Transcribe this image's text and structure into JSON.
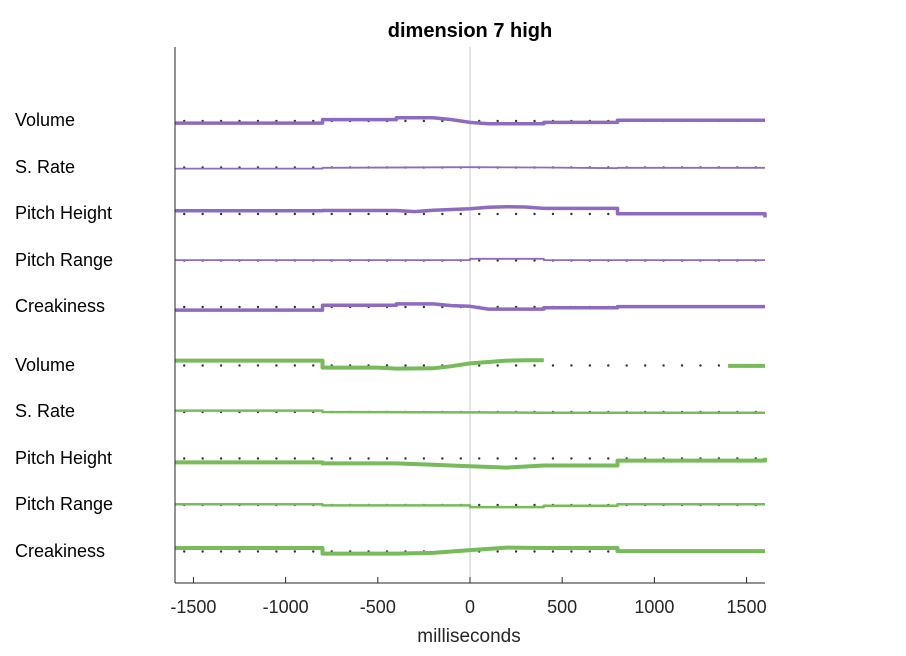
{
  "chart_data": {
    "type": "line",
    "title": "dimension  7 high",
    "xlabel": "milliseconds",
    "ylabel": "",
    "xlim": [
      -1600,
      1600
    ],
    "xticks": [
      -1500,
      -1000,
      -500,
      0,
      500,
      1000,
      1500
    ],
    "tick_labels": [
      "-1500",
      "-1000",
      "-500",
      "0",
      "500",
      "1000",
      "1500"
    ],
    "grid": false,
    "zero_line": true,
    "dotted_baselines": true,
    "colors": {
      "purple": "#8e6bbf",
      "green": "#77bb5a",
      "axis": "#262626",
      "zero_line": "#c8c8c8",
      "dots": "#333333"
    },
    "groups": [
      {
        "color": "purple",
        "series": [
          {
            "label": "Volume",
            "weight": 3.5,
            "points": [
              [
                -1600,
                -0.3
              ],
              [
                -800,
                -0.3
              ],
              [
                -800,
                0.2
              ],
              [
                -400,
                0.2
              ],
              [
                -400,
                0.45
              ],
              [
                -200,
                0.45
              ],
              [
                -100,
                0.2
              ],
              [
                0,
                -0.2
              ],
              [
                100,
                -0.4
              ],
              [
                400,
                -0.4
              ],
              [
                400,
                -0.2
              ],
              [
                800,
                -0.2
              ],
              [
                800,
                0.1
              ],
              [
                1600,
                0.1
              ]
            ]
          },
          {
            "label": "S. Rate",
            "weight": 1.8,
            "points": [
              [
                -1600,
                -0.15
              ],
              [
                -800,
                -0.15
              ],
              [
                -800,
                -0.05
              ],
              [
                0,
                0.05
              ],
              [
                400,
                0
              ],
              [
                800,
                -0.1
              ],
              [
                800,
                -0.05
              ],
              [
                1600,
                -0.05
              ]
            ]
          },
          {
            "label": "Pitch Height",
            "weight": 3.5,
            "points": [
              [
                -1600,
                0.45
              ],
              [
                -800,
                0.45
              ],
              [
                -800,
                0.5
              ],
              [
                -400,
                0.5
              ],
              [
                -300,
                0.35
              ],
              [
                -200,
                0.55
              ],
              [
                0,
                0.75
              ],
              [
                100,
                0.95
              ],
              [
                200,
                1.05
              ],
              [
                300,
                1.0
              ],
              [
                400,
                0.8
              ],
              [
                800,
                0.8
              ],
              [
                800,
                0.05
              ],
              [
                1600,
                0.05
              ],
              [
                1600,
                -0.5
              ]
            ]
          },
          {
            "label": "Pitch Range",
            "weight": 1.8,
            "points": [
              [
                -1600,
                0.05
              ],
              [
                0,
                0.05
              ],
              [
                0,
                0.25
              ],
              [
                400,
                0.25
              ],
              [
                400,
                0.05
              ],
              [
                1600,
                0.05
              ]
            ]
          },
          {
            "label": "Creakiness",
            "weight": 3.5,
            "points": [
              [
                -1600,
                -0.45
              ],
              [
                -800,
                -0.45
              ],
              [
                -800,
                0.25
              ],
              [
                -400,
                0.25
              ],
              [
                -400,
                0.45
              ],
              [
                -200,
                0.45
              ],
              [
                -100,
                0.2
              ],
              [
                0,
                0.1
              ],
              [
                100,
                -0.3
              ],
              [
                400,
                -0.3
              ],
              [
                400,
                -0.1
              ],
              [
                800,
                -0.1
              ],
              [
                800,
                0.05
              ],
              [
                1600,
                0.05
              ]
            ]
          }
        ]
      },
      {
        "color": "green",
        "series": [
          {
            "label": "Volume",
            "weight": 4,
            "points": [
              [
                -1600,
                0.7
              ],
              [
                -800,
                0.7
              ],
              [
                -800,
                -0.3
              ],
              [
                -500,
                -0.3
              ],
              [
                -400,
                -0.45
              ],
              [
                -200,
                -0.4
              ],
              [
                -100,
                -0.1
              ],
              [
                0,
                0.3
              ],
              [
                100,
                0.5
              ],
              [
                200,
                0.7
              ],
              [
                300,
                0.75
              ],
              [
                400,
                0.75
              ]
            ],
            "extra_points": [
              [
                1400,
                -0.05
              ],
              [
                1600,
                -0.05
              ]
            ]
          },
          {
            "label": "S. Rate",
            "weight": 2.5,
            "points": [
              [
                -1600,
                0.2
              ],
              [
                -800,
                0.2
              ],
              [
                -800,
                0
              ],
              [
                0,
                -0.05
              ],
              [
                400,
                -0.1
              ],
              [
                1600,
                -0.1
              ]
            ]
          },
          {
            "label": "Pitch Height",
            "weight": 4,
            "points": [
              [
                -1600,
                -0.55
              ],
              [
                -800,
                -0.55
              ],
              [
                -800,
                -0.7
              ],
              [
                -400,
                -0.7
              ],
              [
                -200,
                -0.9
              ],
              [
                0,
                -1.1
              ],
              [
                200,
                -1.3
              ],
              [
                400,
                -1.0
              ],
              [
                800,
                -1.0
              ],
              [
                800,
                -0.3
              ],
              [
                1600,
                -0.3
              ],
              [
                1600,
                0.1
              ]
            ]
          },
          {
            "label": "Pitch Range",
            "weight": 2.5,
            "points": [
              [
                -1600,
                0.1
              ],
              [
                -800,
                0.1
              ],
              [
                -800,
                -0.05
              ],
              [
                0,
                -0.05
              ],
              [
                0,
                -0.3
              ],
              [
                400,
                -0.3
              ],
              [
                400,
                -0.1
              ],
              [
                800,
                -0.1
              ],
              [
                800,
                0.1
              ],
              [
                1600,
                0.1
              ]
            ]
          },
          {
            "label": "Creakiness",
            "weight": 4,
            "points": [
              [
                -1600,
                0.5
              ],
              [
                -800,
                0.5
              ],
              [
                -800,
                -0.3
              ],
              [
                -400,
                -0.3
              ],
              [
                -200,
                -0.2
              ],
              [
                0,
                0.2
              ],
              [
                200,
                0.55
              ],
              [
                400,
                0.5
              ],
              [
                800,
                0.5
              ],
              [
                800,
                0.05
              ],
              [
                1600,
                0.05
              ]
            ]
          }
        ]
      }
    ]
  }
}
